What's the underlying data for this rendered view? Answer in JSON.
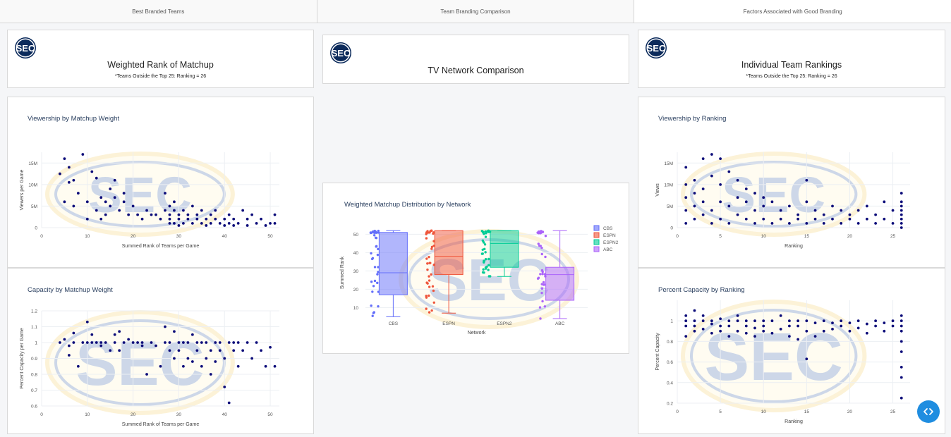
{
  "tabs": [
    {
      "label": "Best Branded Teams"
    },
    {
      "label": "Team Branding Comparison"
    },
    {
      "label": "Factors Associated with Good Branding"
    }
  ],
  "headers": {
    "left": {
      "title": "Weighted Rank of Matchup",
      "subtitle": "*Teams Outside the Top 25: Ranking = 26"
    },
    "middle": {
      "title": "TV Network Comparison"
    },
    "right": {
      "title": "Individual Team Rankings",
      "subtitle": "*Teams Outside the Top 25: Ranking = 26"
    }
  },
  "logo_text": "SEC",
  "colors": {
    "marker": "#0d0d7a",
    "CBS": "#636efa",
    "ESPN": "#ef553b",
    "ESPN2": "#00cc96",
    "ABC": "#ab63fa"
  },
  "chart_data": [
    {
      "id": "views-matchup",
      "type": "scatter",
      "title": "Viewership by Matchup Weight",
      "xlabel": "Summed Rank of Teams per Game",
      "ylabel": "Viewers per Game",
      "xlim": [
        0,
        52
      ],
      "ylim": [
        0,
        17.5
      ],
      "xticks": [
        0,
        10,
        20,
        30,
        40,
        50
      ],
      "yticks": [
        0,
        5,
        10,
        15
      ],
      "ytick_labels": [
        "0",
        "5M",
        "10M",
        "15M"
      ],
      "x": [
        4,
        5,
        5,
        6,
        6,
        7,
        7,
        8,
        9,
        10,
        10,
        11,
        12,
        12,
        13,
        13,
        14,
        14,
        15,
        15,
        16,
        16,
        17,
        18,
        18,
        19,
        20,
        21,
        22,
        23,
        24,
        25,
        26,
        27,
        27,
        28,
        28,
        28,
        28,
        29,
        29,
        29,
        30,
        30,
        30,
        31,
        31,
        32,
        32,
        33,
        33,
        34,
        34,
        35,
        35,
        36,
        36,
        37,
        37,
        38,
        38,
        39,
        40,
        40,
        41,
        41,
        42,
        42,
        43,
        44,
        45,
        45,
        46,
        47,
        48,
        49,
        50,
        51,
        51
      ],
      "y": [
        12.5,
        16,
        6,
        14,
        10.5,
        11,
        5,
        8,
        17,
        2,
        6,
        13,
        11.5,
        4,
        7,
        2,
        6,
        3,
        9,
        5,
        11,
        7,
        4,
        6,
        8,
        3,
        5,
        3,
        2,
        4,
        3,
        3,
        2,
        8,
        4,
        3,
        5,
        2,
        1,
        4,
        1,
        6,
        3,
        2,
        0.5,
        4,
        1,
        3,
        2,
        5,
        1,
        2,
        3,
        1,
        4,
        2,
        0.5,
        3,
        1,
        2,
        4,
        1,
        2,
        0.5,
        3,
        1,
        2,
        0.5,
        1,
        4,
        2,
        0.5,
        3,
        1,
        2,
        0.5,
        1,
        3,
        1
      ]
    },
    {
      "id": "capacity-matchup",
      "type": "scatter",
      "title": "Capacity by Matchup Weight",
      "xlabel": "Summed Rank of Teams per Game",
      "ylabel": "Percent Capacity per Game",
      "xlim": [
        0,
        52
      ],
      "ylim": [
        0.6,
        1.2
      ],
      "xticks": [
        0,
        10,
        20,
        30,
        40,
        50
      ],
      "yticks": [
        0.6,
        0.7,
        0.8,
        0.9,
        1,
        1.1,
        1.2
      ],
      "ytick_labels": [
        "0.6",
        "0.7",
        "0.8",
        "0.9",
        "1",
        "1.1",
        "1.2"
      ],
      "x": [
        4,
        5,
        6,
        6,
        7,
        7,
        8,
        9,
        10,
        10,
        11,
        11,
        12,
        13,
        13,
        14,
        15,
        16,
        16,
        17,
        17,
        18,
        19,
        20,
        21,
        22,
        22,
        23,
        24,
        25,
        26,
        27,
        27,
        28,
        28,
        29,
        29,
        30,
        30,
        31,
        31,
        32,
        32,
        33,
        33,
        34,
        34,
        35,
        35,
        36,
        36,
        37,
        37,
        38,
        38,
        39,
        39,
        40,
        40,
        41,
        41,
        42,
        42,
        43,
        43,
        44,
        45,
        46,
        47,
        48,
        49,
        50,
        51
      ],
      "y": [
        1,
        1.02,
        0.98,
        0.92,
        1,
        1.06,
        0.85,
        1,
        1.13,
        1,
        1,
        1.05,
        1,
        0.98,
        1,
        1,
        0.95,
        1.05,
        1,
        0.95,
        1.07,
        1,
        1.02,
        1,
        1,
        0.98,
        1,
        0.8,
        1,
        0.98,
        0.85,
        1,
        1.1,
        0.95,
        1,
        0.9,
        1.07,
        0.95,
        1,
        0.85,
        1,
        0.9,
        1,
        1.05,
        0.88,
        0.95,
        1,
        0.85,
        1,
        0.9,
        1,
        0.95,
        0.8,
        1,
        0.88,
        0.95,
        1,
        0.72,
        0.9,
        1,
        0.62,
        0.95,
        1,
        0.85,
        1,
        0.95,
        1,
        0.9,
        1,
        0.95,
        0.85,
        0.97,
        0.85
      ]
    },
    {
      "id": "network-box",
      "type": "box",
      "title": "Weighted Matchup Distribution by Network",
      "xlabel": "Network",
      "ylabel": "Summed Rank",
      "categories": [
        "CBS",
        "ESPN",
        "ESPN2",
        "ABC"
      ],
      "ylim": [
        4,
        54
      ],
      "yticks": [
        10,
        20,
        30,
        40,
        50
      ],
      "series": [
        {
          "name": "CBS",
          "min": 5,
          "q1": 17,
          "median": 29,
          "q3": 51,
          "max": 52
        },
        {
          "name": "ESPN",
          "min": 7,
          "q1": 28,
          "median": 38,
          "q3": 52,
          "max": 52
        },
        {
          "name": "ESPN2",
          "min": 27,
          "q1": 32,
          "median": 45,
          "q3": 52,
          "max": 52
        },
        {
          "name": "ABC",
          "min": 4,
          "q1": 14,
          "median": 28,
          "q3": 32,
          "max": 52
        }
      ]
    },
    {
      "id": "views-ranking",
      "type": "scatter",
      "title": "Viewership by Ranking",
      "xlabel": "Ranking",
      "ylabel": "Views",
      "xlim": [
        0,
        27
      ],
      "ylim": [
        0,
        17.5
      ],
      "xticks": [
        0,
        5,
        10,
        15,
        20,
        25
      ],
      "yticks": [
        0,
        5,
        10,
        15
      ],
      "ytick_labels": [
        "0",
        "5M",
        "10M",
        "15M"
      ],
      "x": [
        1,
        1,
        1,
        1,
        1,
        2,
        2,
        2,
        2,
        3,
        3,
        3,
        3,
        4,
        4,
        4,
        4,
        5,
        5,
        5,
        5,
        6,
        6,
        6,
        7,
        7,
        7,
        8,
        8,
        8,
        9,
        9,
        9,
        10,
        10,
        10,
        11,
        11,
        12,
        12,
        13,
        13,
        14,
        14,
        15,
        15,
        15,
        16,
        16,
        17,
        17,
        18,
        18,
        19,
        19,
        20,
        20,
        21,
        21,
        22,
        22,
        23,
        23,
        24,
        24,
        25,
        25,
        26,
        26,
        26,
        26,
        26,
        26,
        26,
        26
      ],
      "y": [
        1,
        4,
        7,
        10,
        14,
        2,
        5,
        8,
        11,
        3,
        6,
        16,
        9,
        1,
        4,
        12,
        17,
        2,
        6,
        10,
        16,
        1,
        5,
        13,
        3,
        7,
        11,
        2,
        6,
        9,
        1,
        4,
        8,
        2,
        5,
        7,
        1,
        6,
        2,
        4,
        1,
        5,
        2,
        3,
        1,
        6,
        11,
        2,
        4,
        1,
        3,
        2,
        5,
        1,
        4,
        2,
        3,
        1,
        4,
        2,
        5,
        1,
        3,
        2,
        6,
        1,
        4,
        0,
        1,
        2,
        3,
        4,
        5,
        6,
        8
      ]
    },
    {
      "id": "capacity-ranking",
      "type": "scatter",
      "title": "Percent Capacity by Ranking",
      "xlabel": "Ranking",
      "ylabel": "Percent Capacity",
      "xlim": [
        0,
        27
      ],
      "ylim": [
        0.2,
        1.2
      ],
      "xticks": [
        0,
        5,
        10,
        15,
        20,
        25
      ],
      "yticks": [
        0.2,
        0.4,
        0.6,
        0.8,
        1
      ],
      "ytick_labels": [
        "0.2",
        "0.4",
        "0.6",
        "0.8",
        "1"
      ],
      "x": [
        1,
        1,
        1,
        1,
        2,
        2,
        2,
        2,
        3,
        3,
        3,
        4,
        4,
        4,
        5,
        5,
        5,
        6,
        6,
        6,
        7,
        7,
        7,
        8,
        8,
        8,
        9,
        9,
        9,
        10,
        10,
        10,
        11,
        11,
        12,
        12,
        13,
        13,
        13,
        14,
        14,
        14,
        15,
        15,
        15,
        16,
        16,
        17,
        17,
        18,
        18,
        19,
        19,
        20,
        20,
        21,
        21,
        22,
        22,
        23,
        23,
        24,
        24,
        25,
        25,
        26,
        26,
        26,
        26,
        26,
        26,
        26,
        26,
        26
      ],
      "y": [
        0.85,
        0.95,
        1,
        1.05,
        0.9,
        1,
        1.1,
        0.95,
        0.92,
        1,
        1.05,
        0.88,
        1,
        0.97,
        0.9,
        1.02,
        0.95,
        0.85,
        1,
        0.95,
        0.9,
        1,
        1.05,
        0.88,
        1,
        0.95,
        0.85,
        1,
        0.93,
        0.9,
        1,
        0.95,
        0.88,
        1,
        0.92,
        1.05,
        0.85,
        1,
        0.95,
        0.82,
        1,
        0.95,
        0.63,
        0.9,
        1,
        0.85,
        0.98,
        0.9,
        1,
        0.92,
        0.98,
        0.95,
        1,
        0.9,
        0.98,
        0.93,
        1,
        0.88,
        0.97,
        0.95,
        1,
        0.9,
        0.98,
        0.95,
        1,
        0.25,
        0.45,
        0.55,
        0.7,
        0.8,
        0.9,
        1,
        1.05,
        0.95
      ]
    }
  ]
}
